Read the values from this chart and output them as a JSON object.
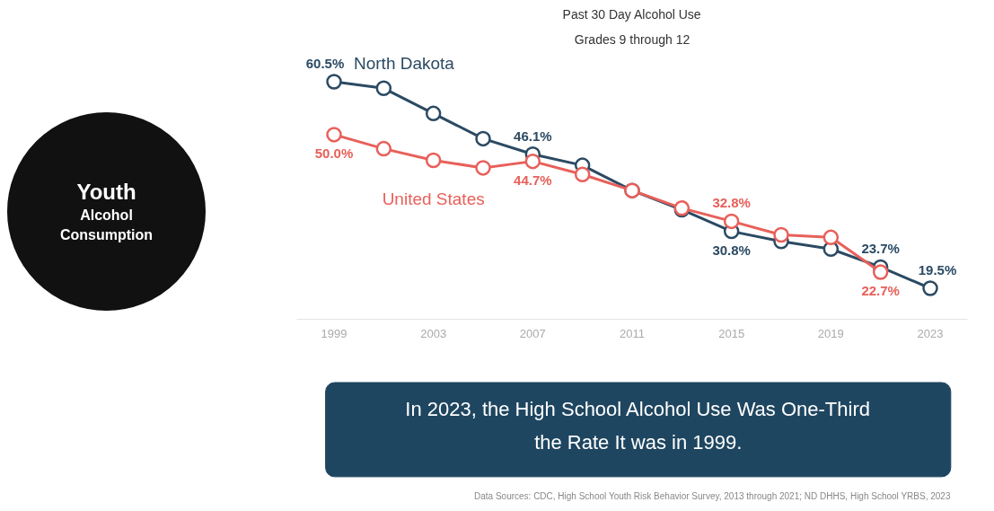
{
  "chart_data": {
    "type": "line",
    "title": "Past 30 Day Alcohol Use",
    "subtitle": "Grades 9 through 12",
    "x": [
      1999,
      2001,
      2003,
      2005,
      2007,
      2009,
      2011,
      2013,
      2015,
      2017,
      2019,
      2021,
      2023
    ],
    "series": [
      {
        "name": "North Dakota",
        "color": "#2b4a63",
        "values": [
          60.5,
          59.2,
          54.2,
          49.2,
          46.1,
          43.9,
          38.9,
          35.1,
          30.8,
          28.8,
          27.3,
          23.7,
          19.5
        ],
        "value_labels": [
          "60.5%",
          null,
          null,
          null,
          "46.1%",
          null,
          null,
          null,
          "30.8%",
          null,
          null,
          "23.7%",
          "19.5%"
        ]
      },
      {
        "name": "United States",
        "color": "#e8605a",
        "values": [
          50.0,
          47.2,
          44.9,
          43.4,
          44.7,
          42.1,
          38.9,
          35.4,
          32.8,
          30.1,
          29.6,
          22.7,
          null
        ],
        "value_labels": [
          "50.0%",
          null,
          null,
          null,
          "44.7%",
          null,
          null,
          null,
          "32.8%",
          null,
          null,
          "22.7%",
          null
        ]
      }
    ],
    "xlim": [
      1997.5,
      2024.5
    ],
    "xticks": [
      1999,
      2003,
      2007,
      2011,
      2015,
      2019,
      2023
    ],
    "tick_labels": "x",
    "grid": false,
    "legend": false,
    "marker": "circle",
    "line_style": "solid",
    "annotations": [
      "Youth Alcohol Consumption",
      "In 2023, the High School Alcohol Use Was One-Third the Rate It was in 1999.",
      "Data Sources: CDC, High School Youth Risk Behavior Survey, 2013 through 2021; ND DHHS, High School YRBS, 2023"
    ]
  }
}
